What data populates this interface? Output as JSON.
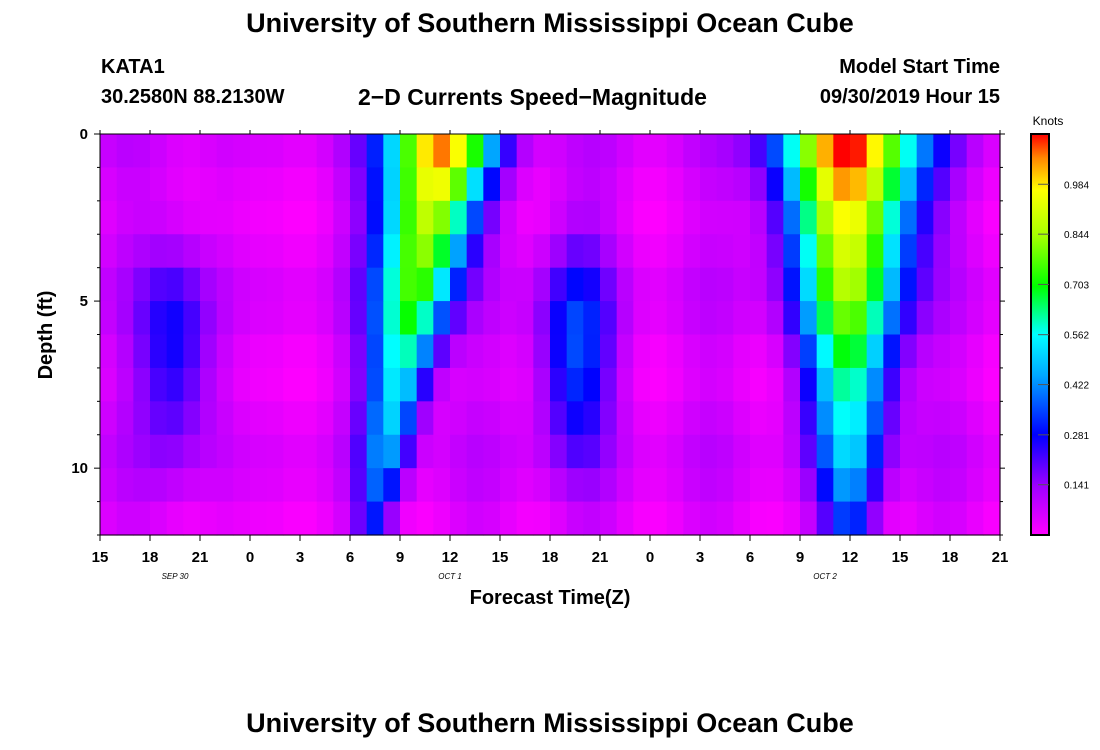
{
  "header": {
    "title": "University of Southern Mississippi Ocean Cube",
    "station": "KATA1",
    "coords": "30.2580N 88.2130W",
    "subtitle": "2−D Currents Speed−Magnitude",
    "model_start_label": "Model Start Time",
    "model_start_value": "09/30/2019 Hour 15"
  },
  "footer": {
    "title": "University of Southern Mississippi Ocean Cube"
  },
  "chart_data": {
    "type": "heatmap",
    "title": "2−D Currents Speed−Magnitude",
    "xlabel": "Forecast Time(Z)",
    "ylabel": "Depth (ft)",
    "x_range_hours": [
      0,
      54
    ],
    "x_ticks": [
      "15",
      "18",
      "21",
      "0",
      "3",
      "6",
      "9",
      "12",
      "15",
      "18",
      "21",
      "0",
      "3",
      "6",
      "9",
      "12",
      "15",
      "18",
      "21"
    ],
    "date_labels": [
      {
        "label": "SEP 30",
        "hour": 4.5
      },
      {
        "label": "OCT 1",
        "hour": 21
      },
      {
        "label": "OCT 2",
        "hour": 43.5
      }
    ],
    "y_ticks": [
      "0",
      "5",
      "10"
    ],
    "ylim": [
      0,
      12
    ],
    "colorbar": {
      "title": "Knots",
      "ticks": [
        "0.984",
        "0.844",
        "0.703",
        "0.562",
        "0.422",
        "0.281",
        "0.141"
      ],
      "vmax": 1.125
    },
    "depth_rows": 12,
    "time_columns": 54,
    "profile": {
      "surface_peaks_knots": [
        {
          "center_hour": 20.5,
          "value": 1.05
        },
        {
          "center_hour": 45,
          "value": 1.1
        }
      ],
      "mid_depth_lobes_knots": [
        {
          "center_hour": 4.5,
          "value": 0.25
        },
        {
          "center_hour": 28.5,
          "value": 0.3
        }
      ],
      "background_knots": 0.05
    }
  }
}
